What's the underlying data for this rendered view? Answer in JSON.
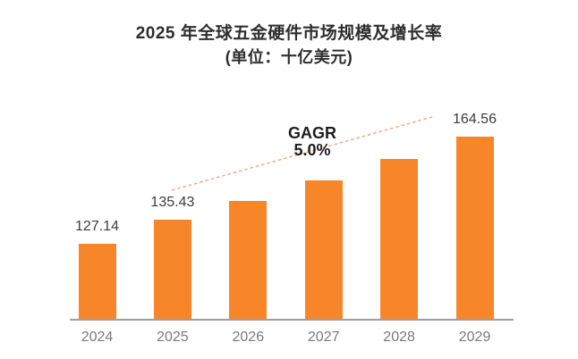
{
  "chart_data": {
    "type": "bar",
    "title": "2025 年全球五金硬件市场规模及增长率",
    "subtitle": "(单位：十亿美元)",
    "categories": [
      "2024",
      "2025",
      "2026",
      "2027",
      "2028",
      "2029"
    ],
    "values": [
      127.14,
      135.43,
      142.2,
      149.31,
      156.78,
      164.56
    ],
    "data_labels": [
      "127.14",
      "135.43",
      null,
      null,
      null,
      "164.56"
    ],
    "annotation": {
      "line1": "GAGR",
      "line2": "5.0%"
    },
    "colors": {
      "bar": "#F7862B",
      "trendline": "#F4A47E",
      "axis_line": "#9E9E9E",
      "tick_label": "#7A7A7A",
      "value_label": "#3C3C3C",
      "title": "#2E2E2E",
      "annotation": "#1D1D1D"
    },
    "layout_hints": {
      "grid": "off",
      "legend": "none",
      "y_axis": "hidden",
      "trendline_style": "dashed"
    }
  }
}
